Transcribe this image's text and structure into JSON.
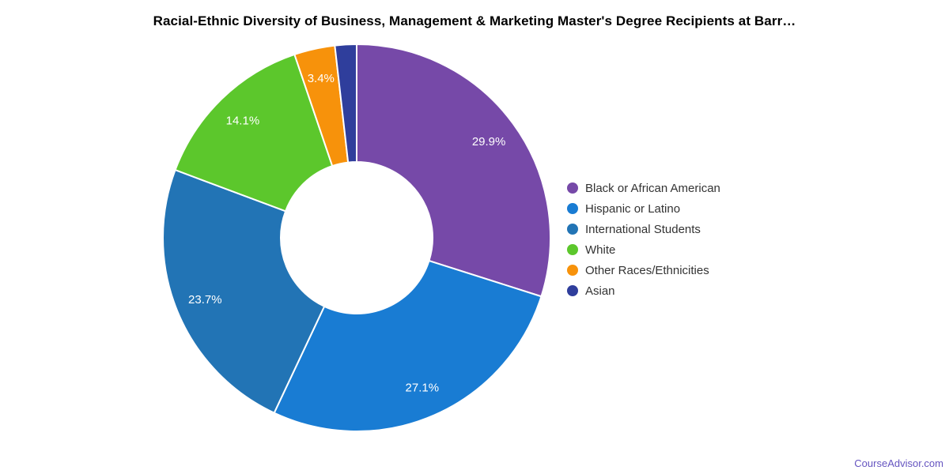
{
  "title": "Racial-Ethnic Diversity of Business, Management & Marketing Master's Degree Recipients at Barr…",
  "footer": {
    "link_label": "CourseAdvisor.com",
    "link_color": "#6554c0"
  },
  "chart_data": {
    "type": "pie",
    "donut": true,
    "title": "Racial-Ethnic Diversity of Business, Management & Marketing Master's Degree Recipients at Barr…",
    "legend_position": "right",
    "start_angle_deg": 0,
    "categories": [
      "Black or African American",
      "Hispanic or Latino",
      "International Students",
      "White",
      "Other Races/Ethnicities",
      "Asian"
    ],
    "values": [
      29.9,
      27.1,
      23.7,
      14.1,
      3.4,
      1.8
    ],
    "slice_labels": [
      "29.9%",
      "27.1%",
      "23.7%",
      "14.1%",
      "3.4%",
      null
    ],
    "colors": [
      "#7649a8",
      "#197cd3",
      "#2274b5",
      "#5cc72c",
      "#f7920b",
      "#2f3e9c"
    ],
    "slice_border_color": "#ffffff",
    "label_color": "#ffffff"
  }
}
